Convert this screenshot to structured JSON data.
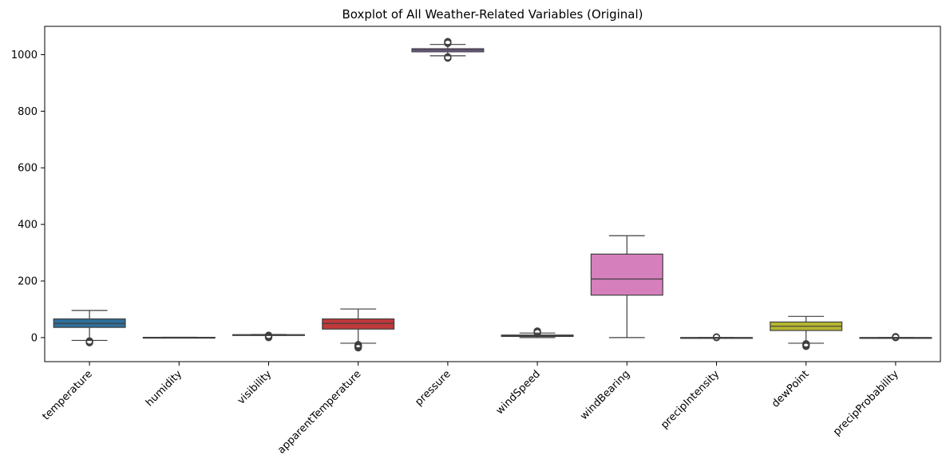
{
  "chart_data": {
    "type": "box",
    "title": "Boxplot of All Weather-Related Variables (Original)",
    "xlabel": "",
    "ylabel": "",
    "ylim": [
      -85,
      1100
    ],
    "yticks": [
      0,
      200,
      400,
      600,
      800,
      1000
    ],
    "grid": false,
    "categories": [
      "temperature",
      "humidity",
      "visibility",
      "apparentTemperature",
      "pressure",
      "windSpeed",
      "windBearing",
      "precipIntensity",
      "dewPoint",
      "precipProbability"
    ],
    "boxes": [
      {
        "category": "temperature",
        "color": "#2f6f9a",
        "whisker_low": -10,
        "q1": 36,
        "median": 50,
        "q3": 66,
        "whisker_high": 96,
        "outliers": [
          -12,
          -14,
          -16,
          -18
        ]
      },
      {
        "category": "humidity",
        "color": "#d8812f",
        "whisker_low": 0,
        "q1": 0.5,
        "median": 0.7,
        "q3": 0.9,
        "whisker_high": 1,
        "outliers": []
      },
      {
        "category": "visibility",
        "color": "#3f9a3f",
        "whisker_low": 8,
        "q1": 9.8,
        "median": 10,
        "q3": 10.2,
        "whisker_high": 11,
        "outliers": [
          0,
          2,
          4,
          6,
          8
        ]
      },
      {
        "category": "apparentTemperature",
        "color": "#c0393b",
        "whisker_low": -20,
        "q1": 30,
        "median": 50,
        "q3": 66,
        "whisker_high": 101,
        "outliers": [
          -25,
          -28,
          -30,
          -33,
          -36
        ]
      },
      {
        "category": "pressure",
        "color": "#8f6dbb",
        "whisker_low": 996,
        "q1": 1010,
        "median": 1016,
        "q3": 1021,
        "whisker_high": 1036,
        "outliers": [
          988,
          990,
          992,
          1040,
          1043,
          1046
        ]
      },
      {
        "category": "windSpeed",
        "color": "#8c564b",
        "whisker_low": 0,
        "q1": 4,
        "median": 6,
        "q3": 9,
        "whisker_high": 16,
        "outliers": [
          17,
          19,
          21,
          23
        ]
      },
      {
        "category": "windBearing",
        "color": "#d67fbd",
        "whisker_low": 0,
        "q1": 150,
        "median": 207,
        "q3": 295,
        "whisker_high": 360,
        "outliers": []
      },
      {
        "category": "precipIntensity",
        "color": "#7f7f7f",
        "whisker_low": 0,
        "q1": 0,
        "median": 0,
        "q3": 0,
        "whisker_high": 0,
        "outliers": [
          0,
          1,
          2
        ]
      },
      {
        "category": "dewPoint",
        "color": "#b5b52f",
        "whisker_low": -20,
        "q1": 25,
        "median": 40,
        "q3": 55,
        "whisker_high": 75,
        "outliers": [
          -22,
          -25,
          -28,
          -31
        ]
      },
      {
        "category": "precipProbability",
        "color": "#2fb5c7",
        "whisker_low": 0,
        "q1": 0,
        "median": 0,
        "q3": 0,
        "whisker_high": 0,
        "outliers": [
          0,
          1,
          2,
          3
        ]
      }
    ]
  }
}
